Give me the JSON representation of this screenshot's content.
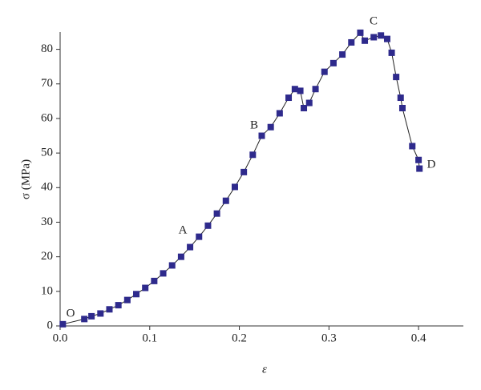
{
  "chart_data": {
    "type": "line",
    "xlabel": "ε",
    "ylabel": "σ (MPa)",
    "x": [
      0.003,
      0.027,
      0.035,
      0.045,
      0.055,
      0.065,
      0.075,
      0.085,
      0.095,
      0.105,
      0.115,
      0.125,
      0.135,
      0.145,
      0.155,
      0.165,
      0.175,
      0.185,
      0.195,
      0.205,
      0.215,
      0.225,
      0.235,
      0.245,
      0.255,
      0.262,
      0.268,
      0.272,
      0.278,
      0.285,
      0.295,
      0.305,
      0.315,
      0.325,
      0.335,
      0.34,
      0.35,
      0.358,
      0.365,
      0.37,
      0.375,
      0.38,
      0.382,
      0.393,
      0.4,
      0.401
    ],
    "values": [
      0.5,
      2,
      2.8,
      3.6,
      4.8,
      6,
      7.5,
      9.2,
      11,
      13,
      15.2,
      17.5,
      20,
      22.8,
      25.8,
      29,
      32.5,
      36.2,
      40.2,
      44.5,
      49.5,
      55,
      57.5,
      61.5,
      66,
      68.5,
      68,
      63,
      64.5,
      68.5,
      73.5,
      76,
      78.5,
      82,
      84.8,
      82.5,
      83.5,
      84,
      83,
      79,
      72,
      66,
      63,
      52,
      48,
      45.5
    ],
    "color": "#2e2a8c",
    "annotations": [
      "O",
      "A",
      "B",
      "C",
      "D"
    ],
    "xlim": [
      0,
      0.45
    ],
    "ylim": [
      0,
      85
    ],
    "xticks": [
      {
        "value": 0,
        "label": "0.0"
      },
      0.1,
      0.2,
      0.3,
      0.4
    ],
    "yticks": [
      0,
      10,
      20,
      30,
      40,
      50,
      60,
      70,
      80
    ]
  }
}
